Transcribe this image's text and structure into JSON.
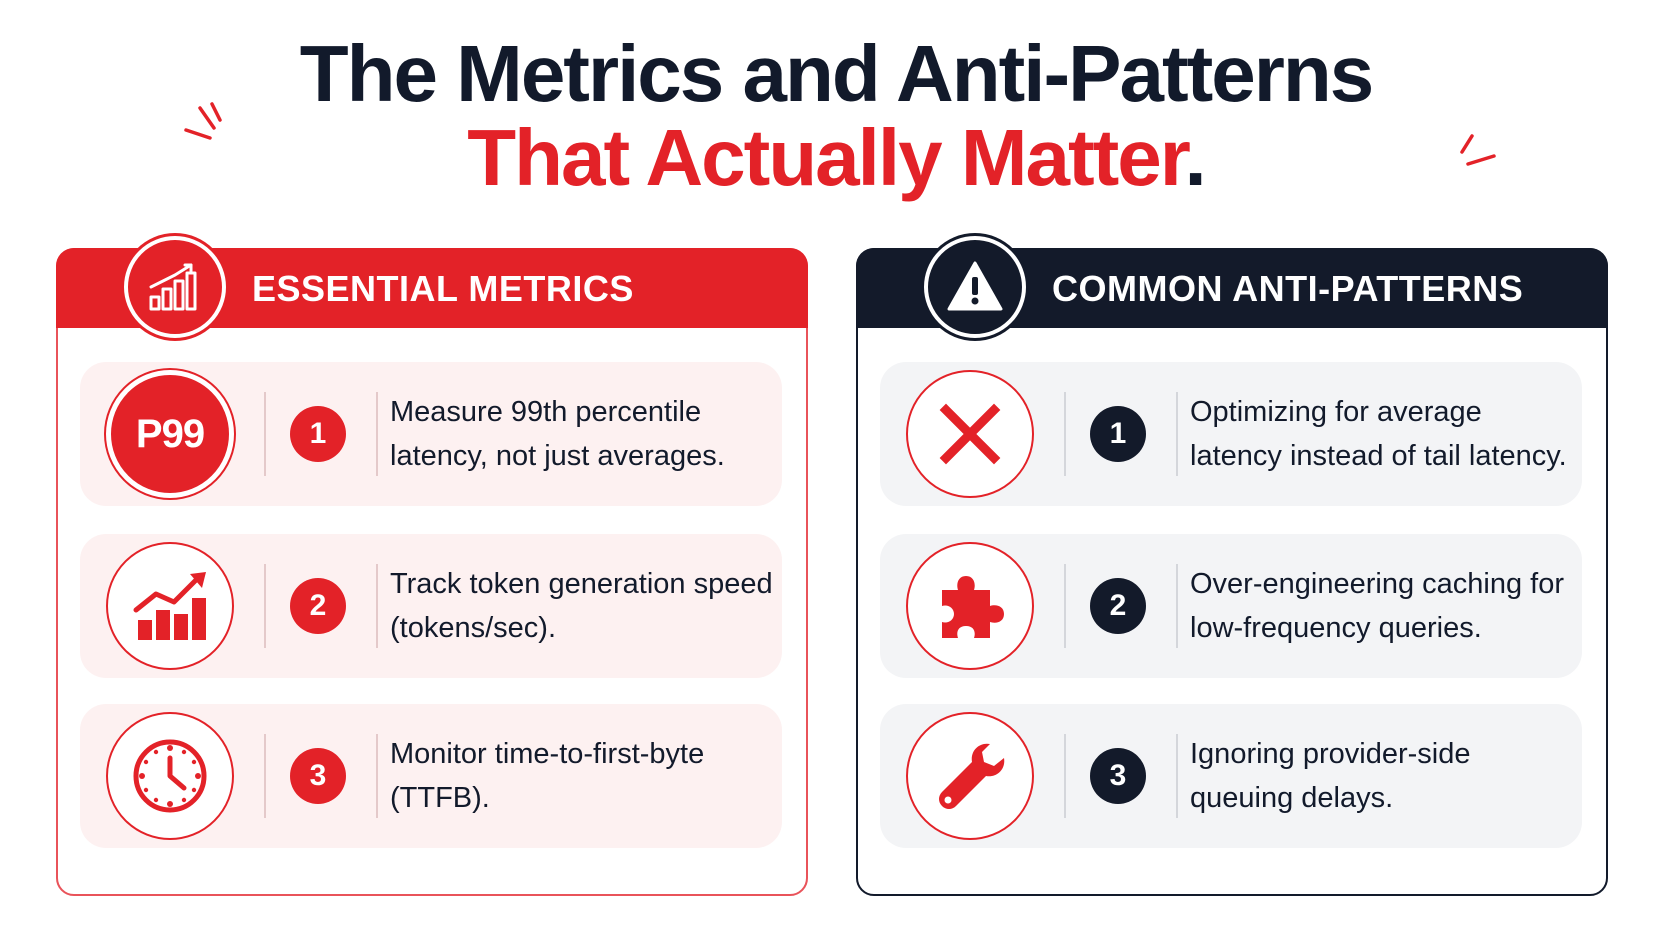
{
  "title": {
    "line1": "The Metrics and Anti-Patterns",
    "line2": "That Actually Matter",
    "line2_end": "."
  },
  "colors": {
    "accent_red": "#e32228",
    "navy": "#131a2a",
    "left_row_bg": "#fdf1f1",
    "right_row_bg": "#f3f4f6"
  },
  "left_panel": {
    "title": "ESSENTIAL METRICS",
    "header_icon": "bar-chart-icon",
    "items": [
      {
        "number": "1",
        "icon": "p99-badge",
        "icon_text": "P99",
        "text": "Measure 99th percentile latency, not just averages."
      },
      {
        "number": "2",
        "icon": "trending-up-chart-icon",
        "text": "Track token generation speed (tokens/sec)."
      },
      {
        "number": "3",
        "icon": "clock-icon",
        "text": "Monitor time-to-first-byte (TTFB)."
      }
    ]
  },
  "right_panel": {
    "title": "COMMON ANTI-PATTERNS",
    "header_icon": "warning-icon",
    "items": [
      {
        "number": "1",
        "icon": "x-mark-icon",
        "text": "Optimizing for average latency instead of tail latency."
      },
      {
        "number": "2",
        "icon": "puzzle-piece-icon",
        "text": "Over-engineering caching for low-frequency queries."
      },
      {
        "number": "3",
        "icon": "wrench-icon",
        "text": "Ignoring provider-side queuing delays."
      }
    ]
  }
}
